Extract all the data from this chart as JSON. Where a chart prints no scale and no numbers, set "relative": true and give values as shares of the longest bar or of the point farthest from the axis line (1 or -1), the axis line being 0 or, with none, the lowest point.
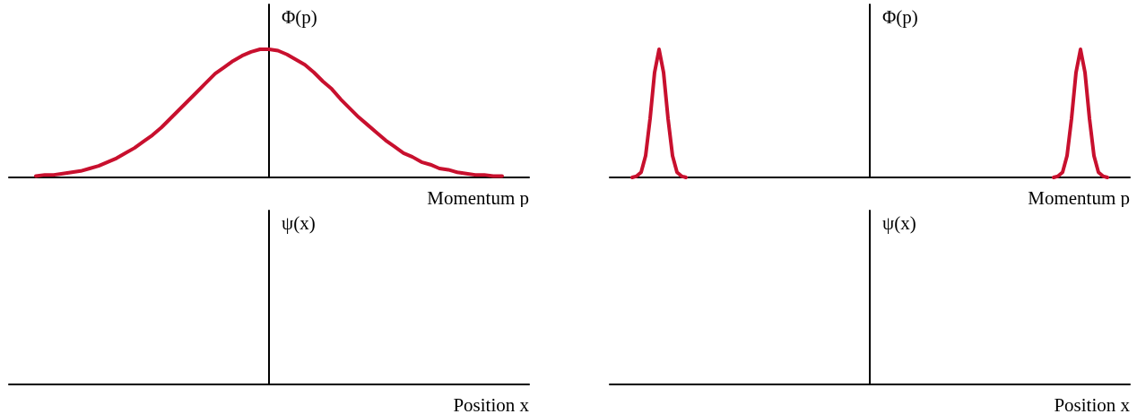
{
  "chart_data": [
    {
      "type": "line",
      "relative": true,
      "xlabel": "Momentum p",
      "ylabel": "Φ(p)",
      "marker": "none",
      "categories": [
        null,
        null,
        null,
        null,
        null,
        null,
        null,
        null,
        null,
        null,
        null,
        null,
        null,
        null,
        null,
        null,
        null,
        null,
        null,
        null,
        null,
        null,
        null,
        null,
        null,
        null,
        null,
        null,
        null,
        null,
        null,
        null,
        null,
        null,
        null,
        null,
        null,
        null,
        null,
        null,
        null,
        null,
        null,
        null,
        null,
        null,
        null,
        null,
        null,
        null,
        null,
        null,
        null,
        null,
        null,
        null,
        null,
        null,
        null
      ],
      "series": [
        {
          "color": "#c8102e",
          "values": [
            null,
            null,
            null,
            0.01,
            0.02,
            0.02,
            0.03,
            0.04,
            0.05,
            0.07,
            0.09,
            0.12,
            0.15,
            0.19,
            0.23,
            0.28,
            0.33,
            0.39,
            0.46,
            0.53,
            0.6,
            0.67,
            0.74,
            0.81,
            0.86,
            0.91,
            0.95,
            0.98,
            1.0,
            1.0,
            0.99,
            0.96,
            0.92,
            0.88,
            0.82,
            0.75,
            0.69,
            0.61,
            0.54,
            0.47,
            0.41,
            0.35,
            0.29,
            0.24,
            0.19,
            0.16,
            0.12,
            0.1,
            0.07,
            0.06,
            0.04,
            0.03,
            0.02,
            0.02,
            0.01,
            0.01,
            null,
            null,
            null
          ]
        }
      ]
    },
    {
      "type": "line",
      "relative": true,
      "xlabel": "Momentum p",
      "ylabel": "Φ(p)",
      "marker": "none",
      "categories": [
        null,
        null,
        null,
        null,
        null,
        null,
        null,
        null,
        null,
        null,
        null,
        null,
        null,
        null,
        null,
        null,
        null,
        null,
        null,
        null,
        null,
        null,
        null,
        null,
        null,
        null,
        null,
        null,
        null,
        null,
        null,
        null,
        null,
        null,
        null,
        null,
        null,
        null,
        null,
        null,
        null,
        null,
        null,
        null,
        null,
        null,
        null,
        null,
        null,
        null,
        null,
        null,
        null,
        null,
        null,
        null,
        null,
        null,
        null,
        null,
        null,
        null,
        null,
        null,
        null,
        null,
        null,
        null,
        null,
        null,
        null,
        null,
        null,
        null,
        null,
        null,
        null,
        null,
        null,
        null,
        null,
        null,
        null,
        null,
        null,
        null,
        null,
        null,
        null,
        null,
        null,
        null,
        null,
        null,
        null,
        null,
        null,
        null,
        null,
        null,
        null,
        null,
        null,
        null,
        null,
        null,
        null,
        null,
        null,
        null,
        null,
        null,
        null,
        null,
        null,
        null,
        null
      ],
      "series": [
        {
          "color": "#c8102e",
          "values": [
            null,
            null,
            null,
            null,
            null,
            0,
            0.01,
            0.04,
            0.17,
            0.46,
            0.82,
            1,
            0.82,
            0.46,
            0.17,
            0.04,
            0.01,
            0,
            null,
            null,
            null,
            null,
            null,
            null,
            null,
            null,
            null,
            null,
            null,
            null,
            null,
            null,
            null,
            null,
            null,
            null,
            null,
            null,
            null,
            null,
            null,
            null,
            null,
            null,
            null,
            null,
            null,
            null,
            null,
            null,
            null,
            null,
            null,
            null,
            null,
            null,
            null,
            null,
            null,
            null,
            null,
            null,
            null,
            null,
            null,
            null,
            null,
            null,
            null,
            null,
            null,
            null,
            null,
            null,
            null,
            null,
            null,
            null,
            null,
            null,
            null,
            null,
            null,
            null,
            null,
            null,
            null,
            null,
            null,
            null,
            null,
            null,
            null,
            null,
            null,
            null,
            null,
            null,
            null,
            null,
            null,
            null,
            null,
            null,
            null,
            null,
            null,
            null,
            null,
            null,
            null,
            null,
            null,
            null,
            null,
            null,
            null
          ]
        },
        {
          "color": "#c8102e",
          "values": [
            null,
            null,
            null,
            null,
            null,
            null,
            null,
            null,
            null,
            null,
            null,
            null,
            null,
            null,
            null,
            null,
            null,
            null,
            null,
            null,
            null,
            null,
            null,
            null,
            null,
            null,
            null,
            null,
            null,
            null,
            null,
            null,
            null,
            null,
            null,
            null,
            null,
            null,
            null,
            null,
            null,
            null,
            null,
            null,
            null,
            null,
            null,
            null,
            null,
            null,
            null,
            null,
            null,
            null,
            null,
            null,
            null,
            null,
            null,
            null,
            null,
            null,
            null,
            null,
            null,
            null,
            null,
            null,
            null,
            null,
            null,
            null,
            null,
            null,
            null,
            null,
            null,
            null,
            null,
            null,
            null,
            null,
            null,
            null,
            null,
            null,
            null,
            null,
            null,
            null,
            null,
            null,
            null,
            null,
            null,
            null,
            null,
            null,
            null,
            0,
            0.01,
            0.04,
            0.17,
            0.46,
            0.82,
            1,
            0.82,
            0.46,
            0.17,
            0.04,
            0.01,
            0,
            null,
            null,
            null,
            null,
            null
          ]
        }
      ]
    },
    {
      "type": "other",
      "xlabel": "Position x",
      "ylabel": "ψ(x)"
    },
    {
      "type": "other",
      "xlabel": "Position x",
      "ylabel": "ψ(x)"
    }
  ]
}
